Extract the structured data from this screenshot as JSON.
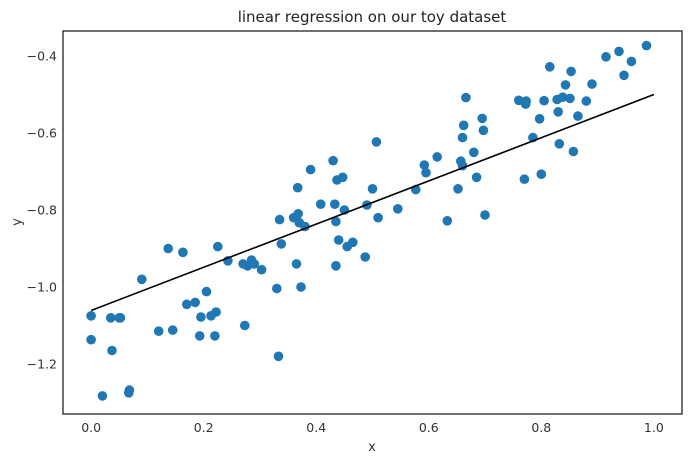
{
  "chart_data": {
    "type": "scatter",
    "title": "linear regression on our toy dataset",
    "xlabel": "x",
    "ylabel": "y",
    "xlim": [
      -0.05,
      1.05
    ],
    "ylim": [
      -1.33,
      -0.335
    ],
    "xticks": [
      0.0,
      0.2,
      0.4,
      0.6,
      0.8,
      1.0
    ],
    "xtick_labels": [
      "0.0",
      "0.2",
      "0.4",
      "0.6",
      "0.8",
      "1.0"
    ],
    "yticks": [
      -1.2,
      -1.0,
      -0.8,
      -0.6,
      -0.4
    ],
    "ytick_labels": [
      "−1.2",
      "−1.0",
      "−0.8",
      "−0.6",
      "−0.4"
    ],
    "grid": false,
    "points": {
      "color": "#1f77b4",
      "x": [
        0.0,
        0.0,
        0.02,
        0.035,
        0.037,
        0.05,
        0.052,
        0.067,
        0.068,
        0.09,
        0.12,
        0.137,
        0.145,
        0.163,
        0.17,
        0.185,
        0.193,
        0.195,
        0.205,
        0.213,
        0.22,
        0.222,
        0.225,
        0.243,
        0.27,
        0.273,
        0.278,
        0.285,
        0.29,
        0.303,
        0.33,
        0.333,
        0.335,
        0.338,
        0.36,
        0.365,
        0.367,
        0.368,
        0.37,
        0.373,
        0.38,
        0.39,
        0.408,
        0.43,
        0.433,
        0.435,
        0.435,
        0.437,
        0.44,
        0.447,
        0.45,
        0.455,
        0.465,
        0.487,
        0.49,
        0.5,
        0.507,
        0.51,
        0.545,
        0.577,
        0.592,
        0.595,
        0.615,
        0.633,
        0.652,
        0.657,
        0.66,
        0.66,
        0.662,
        0.666,
        0.68,
        0.685,
        0.695,
        0.697,
        0.7,
        0.76,
        0.77,
        0.772,
        0.773,
        0.785,
        0.797,
        0.8,
        0.805,
        0.815,
        0.828,
        0.83,
        0.832,
        0.838,
        0.843,
        0.851,
        0.853,
        0.857,
        0.865,
        0.88,
        0.89,
        0.915,
        0.938,
        0.947,
        0.96,
        0.987
      ],
      "y": [
        -1.075,
        -1.137,
        -1.283,
        -1.08,
        -1.165,
        -1.08,
        -1.08,
        -1.275,
        -1.268,
        -0.98,
        -1.115,
        -0.9,
        -1.112,
        -0.91,
        -1.045,
        -1.04,
        -1.127,
        -1.078,
        -1.012,
        -1.075,
        -1.127,
        -1.065,
        -0.895,
        -0.932,
        -0.94,
        -1.1,
        -0.945,
        -0.93,
        -0.94,
        -0.955,
        -1.004,
        -1.18,
        -0.825,
        -0.888,
        -0.82,
        -0.94,
        -0.742,
        -0.81,
        -0.833,
        -1.0,
        -0.843,
        -0.695,
        -0.785,
        -0.672,
        -0.785,
        -0.83,
        -0.945,
        -0.722,
        -0.878,
        -0.715,
        -0.8,
        -0.895,
        -0.884,
        -0.922,
        -0.787,
        -0.745,
        -0.623,
        -0.82,
        -0.797,
        -0.747,
        -0.683,
        -0.703,
        -0.662,
        -0.828,
        -0.745,
        -0.673,
        -0.685,
        -0.612,
        -0.58,
        -0.508,
        -0.65,
        -0.715,
        -0.562,
        -0.593,
        -0.813,
        -0.515,
        -0.72,
        -0.525,
        -0.517,
        -0.612,
        -0.563,
        -0.707,
        -0.516,
        -0.428,
        -0.513,
        -0.545,
        -0.628,
        -0.507,
        -0.475,
        -0.51,
        -0.44,
        -0.648,
        -0.556,
        -0.517,
        -0.473,
        -0.402,
        -0.388,
        -0.45,
        -0.414,
        -0.373
      ]
    },
    "regression_line": {
      "color": "#000000",
      "x": [
        0.0,
        1.0
      ],
      "y": [
        -1.061,
        -0.5
      ]
    }
  }
}
